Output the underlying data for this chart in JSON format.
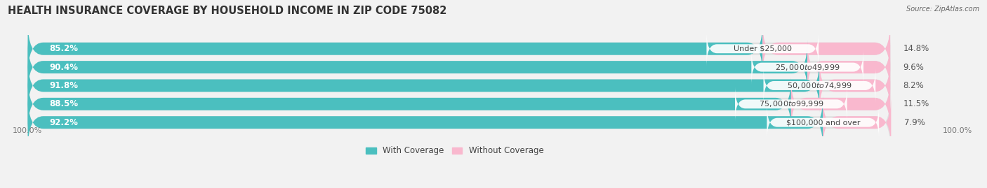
{
  "title": "HEALTH INSURANCE COVERAGE BY HOUSEHOLD INCOME IN ZIP CODE 75082",
  "source": "Source: ZipAtlas.com",
  "categories": [
    "Under $25,000",
    "$25,000 to $49,999",
    "$50,000 to $74,999",
    "$75,000 to $99,999",
    "$100,000 and over"
  ],
  "with_coverage": [
    85.2,
    90.4,
    91.8,
    88.5,
    92.2
  ],
  "without_coverage": [
    14.8,
    9.6,
    8.2,
    11.5,
    7.9
  ],
  "color_with": "#4BBFBF",
  "color_without": "#F47FA4",
  "color_without_light": "#F9B8CE",
  "bg_color": "#f2f2f2",
  "bar_bg_color": "#e0e0e0",
  "bar_height": 0.68,
  "bar_gap": 0.32,
  "title_fontsize": 10.5,
  "label_fontsize": 8.5,
  "cat_fontsize": 8,
  "tick_fontsize": 8,
  "legend_fontsize": 8.5,
  "wc_label_color": "white",
  "woc_label_color": "#555555",
  "cat_label_color": "#444444",
  "note_color": "#777777"
}
